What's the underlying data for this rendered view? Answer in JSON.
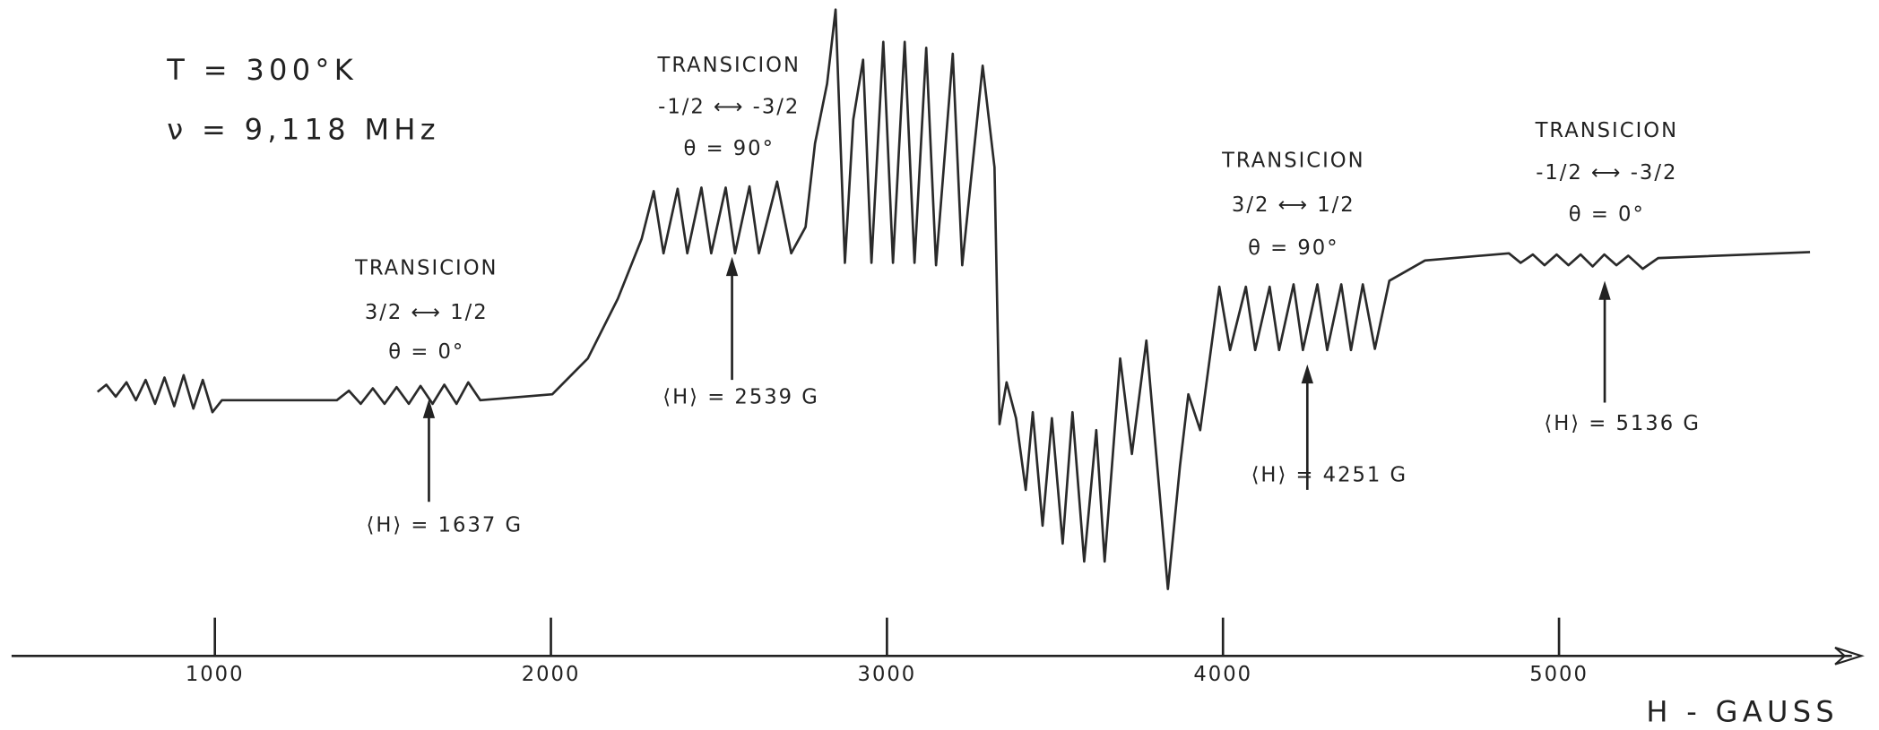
{
  "chart_data": {
    "type": "line",
    "notes": [
      "T = 300°K",
      "ν = 9,118 MHz"
    ],
    "xlabel": "H - GAUSS",
    "xlim": [
      400,
      5900
    ],
    "xticks": [
      1000,
      2000,
      3000,
      4000,
      5000
    ],
    "ylim": [
      0,
      549
    ],
    "color": "#2a2a2a",
    "x": [
      651,
      677,
      705,
      737,
      765,
      794,
      822,
      850,
      879,
      907,
      936,
      964,
      993,
      1021,
      1363,
      1399,
      1434,
      1470,
      1505,
      1541,
      1577,
      1612,
      1648,
      1683,
      1719,
      1754,
      1790,
      2004,
      2110,
      2199,
      2270,
      2306,
      2335,
      2377,
      2406,
      2448,
      2477,
      2520,
      2548,
      2591,
      2619,
      2673,
      2715,
      2758,
      2786,
      2822,
      2847,
      2875,
      2900,
      2929,
      2954,
      2989,
      3018,
      3053,
      3082,
      3117,
      3146,
      3196,
      3224,
      3285,
      3320,
      3335,
      3356,
      3384,
      3413,
      3434,
      3463,
      3491,
      3523,
      3552,
      3587,
      3623,
      3648,
      3694,
      3729,
      3772,
      3836,
      3872,
      3897,
      3932,
      3989,
      4021,
      4068,
      4096,
      4139,
      4167,
      4210,
      4238,
      4281,
      4310,
      4352,
      4381,
      4416,
      4452,
      4495,
      4601,
      4851,
      4886,
      4922,
      4957,
      4993,
      5028,
      5064,
      5100,
      5135,
      5171,
      5206,
      5249,
      5295,
      5747
    ],
    "values": [
      221,
      227,
      217,
      229,
      214,
      231,
      211,
      233,
      209,
      235,
      207,
      231,
      204,
      214,
      214,
      222,
      211,
      224,
      211,
      225,
      211,
      226,
      211,
      227,
      211,
      229,
      214,
      219,
      249,
      299,
      349,
      389,
      337,
      391,
      337,
      392,
      337,
      392,
      337,
      393,
      337,
      397,
      337,
      359,
      429,
      479,
      541,
      329,
      449,
      499,
      329,
      514,
      329,
      514,
      329,
      509,
      327,
      504,
      327,
      494,
      409,
      194,
      229,
      199,
      139,
      204,
      109,
      199,
      94,
      204,
      79,
      189,
      79,
      249,
      169,
      264,
      56,
      159,
      219,
      189,
      309,
      256,
      309,
      256,
      309,
      256,
      311,
      256,
      311,
      256,
      311,
      256,
      311,
      257,
      314,
      331,
      337,
      329,
      336,
      327,
      336,
      327,
      336,
      326,
      336,
      327,
      335,
      324,
      333,
      338
    ],
    "annotations": [
      {
        "x": 1637,
        "lines": [
          "TRANSICION",
          "3/2 ⟷ 1/2",
          "θ = 0°"
        ],
        "label": "⟨H⟩ = 1637 G"
      },
      {
        "x": 2539,
        "lines": [
          "TRANSICION",
          "-1/2 ⟷ -3/2",
          "θ = 90°"
        ],
        "label": "⟨H⟩ = 2539 G"
      },
      {
        "x": 4251,
        "lines": [
          "TRANSICION",
          "3/2 ⟷ 1/2",
          "θ = 90°"
        ],
        "label": "⟨H⟩ = 4251 G"
      },
      {
        "x": 5136,
        "lines": [
          "TRANSICION",
          "-1/2 ⟷ -3/2",
          "θ = 0°"
        ],
        "label": "⟨H⟩ = 5136 G"
      }
    ]
  }
}
